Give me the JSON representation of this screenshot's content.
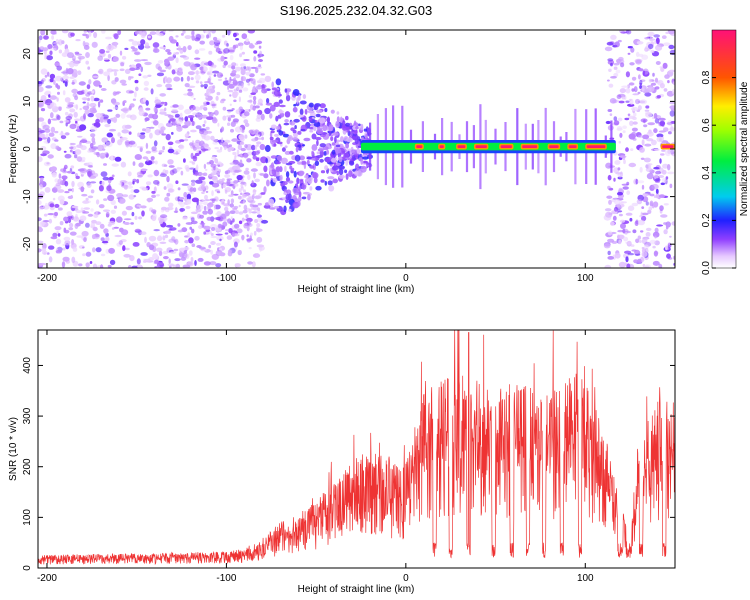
{
  "title": "S196.2025.232.04.32.G03",
  "chart_data": [
    {
      "type": "heatmap",
      "xlabel": "Height of straight line (km)",
      "ylabel": "Frequency (Hz)",
      "xlim": [
        -205,
        150
      ],
      "ylim": [
        -25,
        25
      ],
      "xticks": [
        -200,
        -100,
        0,
        100
      ],
      "yticks": [
        -20,
        -10,
        0,
        10,
        20
      ],
      "colorbar": {
        "label": "Normalized spectral amplitude",
        "range": [
          0,
          1
        ],
        "ticks": [
          0.0,
          0.2,
          0.4,
          0.6,
          0.8
        ],
        "tick_labels": [
          "0.0",
          "0.2",
          "0.4",
          "0.6",
          "0.8"
        ]
      },
      "features": {
        "noise_regions_km": [
          [
            -205,
            -80
          ],
          [
            112,
            150
          ]
        ],
        "scattered_blobs_km": [
          -120,
          -30
        ],
        "carrier_line_km": [
          -25,
          117
        ],
        "carrier_frequency_hz": 0.5,
        "high_amplitude_segments_km": [
          [
            5,
            10
          ],
          [
            18,
            22
          ],
          [
            28,
            34
          ],
          [
            38,
            46
          ],
          [
            52,
            60
          ],
          [
            64,
            74
          ],
          [
            79,
            86
          ],
          [
            90,
            96
          ],
          [
            100,
            112
          ],
          [
            142,
            150
          ]
        ]
      }
    },
    {
      "type": "line",
      "xlabel": "Height of straight line (km)",
      "ylabel": "SNR (10 * v/v)",
      "xlim": [
        -205,
        150
      ],
      "ylim": [
        0,
        470
      ],
      "xticks": [
        -200,
        -100,
        0,
        100
      ],
      "yticks": [
        0,
        100,
        200,
        300,
        400
      ],
      "series": [
        {
          "name": "SNR",
          "color": "#ee3333",
          "envelope_x": [
            -205,
            -150,
            -100,
            -90,
            -80,
            -70,
            -60,
            -50,
            -40,
            -30,
            -20,
            -10,
            0,
            5,
            10,
            20,
            30,
            35,
            40,
            50,
            60,
            70,
            80,
            90,
            95,
            100,
            110,
            115,
            120,
            125,
            130,
            140,
            148,
            150
          ],
          "envelope_y": [
            20,
            22,
            25,
            30,
            45,
            70,
            85,
            105,
            130,
            160,
            175,
            170,
            160,
            220,
            270,
            285,
            300,
            340,
            300,
            280,
            280,
            275,
            270,
            290,
            300,
            280,
            220,
            150,
            90,
            60,
            200,
            255,
            260,
            250
          ],
          "drop_segments_km": [
            [
              15,
              17
            ],
            [
              24,
              26
            ],
            [
              34,
              36
            ],
            [
              48,
              50
            ],
            [
              58,
              60
            ],
            [
              67,
              69
            ],
            [
              76,
              78
            ],
            [
              86,
              88
            ],
            [
              96,
              98
            ],
            [
              118,
              121
            ],
            [
              123,
              126
            ],
            [
              130,
              132
            ],
            [
              143,
              145
            ]
          ],
          "peak_max": 465
        }
      ]
    }
  ]
}
